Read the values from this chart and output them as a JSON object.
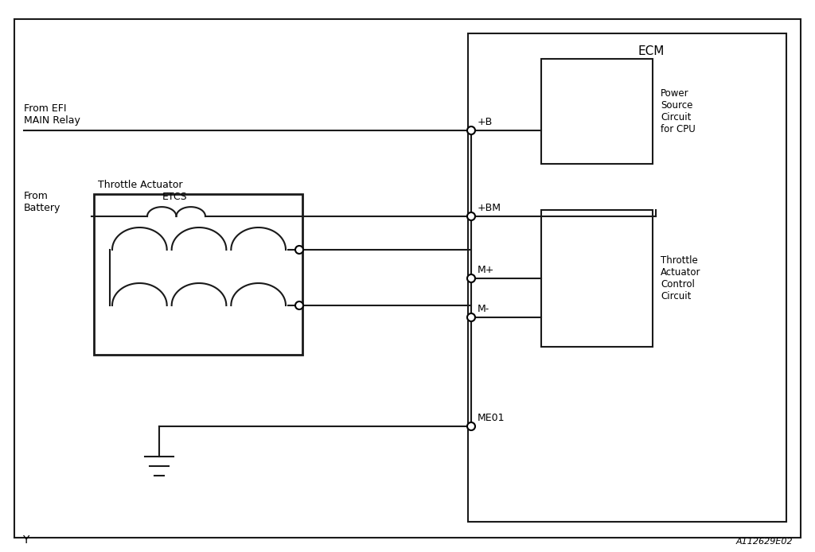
{
  "bg_color": "#ffffff",
  "border_color": "#1a1a1a",
  "line_color": "#1a1a1a",
  "title": "ECM",
  "label_Y": "Y",
  "label_code": "A112629E02",
  "from_efi_text": "From EFI\nMAIN Relay",
  "from_battery_text": "From\nBattery",
  "etcs_label": "ETCS",
  "throttle_actuator_label": "Throttle Actuator",
  "power_source_label": "Power\nSource\nCircuit\nfor CPU",
  "throttle_actuator_control_label": "Throttle\nActuator\nControl\nCircuit",
  "pin_labels": [
    "+B",
    "+BM",
    "M+",
    "M-",
    "ME01"
  ],
  "figsize": [
    10.24,
    6.94
  ],
  "dpi": 100
}
